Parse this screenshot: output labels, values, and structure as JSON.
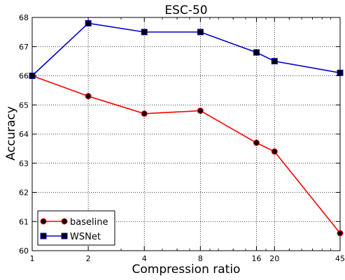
{
  "chart_data": {
    "type": "line",
    "title": "ESC-50",
    "xlabel": "Compression ratio",
    "ylabel": "Accuracy",
    "x_scale": "log2",
    "xlim": [
      1,
      45
    ],
    "ylim": [
      60,
      68
    ],
    "x_ticks": [
      1,
      2,
      4,
      8,
      16,
      20,
      45
    ],
    "x_tick_labels": [
      "1",
      "2",
      "4",
      "8",
      "16",
      "20",
      "45"
    ],
    "y_ticks": [
      60,
      61,
      62,
      63,
      64,
      65,
      66,
      67,
      68
    ],
    "y_tick_labels": [
      "60",
      "61",
      "62",
      "63",
      "64",
      "65",
      "66",
      "67",
      "68"
    ],
    "grid": true,
    "grid_style": "dotted",
    "legend_position": "bottom-left",
    "x": [
      1,
      2,
      4,
      8,
      16,
      20,
      45
    ],
    "series": [
      {
        "name": "baseline",
        "color": "#ff0000",
        "marker": "circle",
        "marker_fill": "#000000",
        "values": [
          66.0,
          65.3,
          64.7,
          64.8,
          63.7,
          63.4,
          60.6
        ]
      },
      {
        "name": "WSNet",
        "color": "#0000cc",
        "marker": "square",
        "marker_fill": "#000000",
        "values": [
          66.0,
          67.8,
          67.5,
          67.5,
          66.8,
          66.5,
          66.1
        ]
      }
    ]
  }
}
